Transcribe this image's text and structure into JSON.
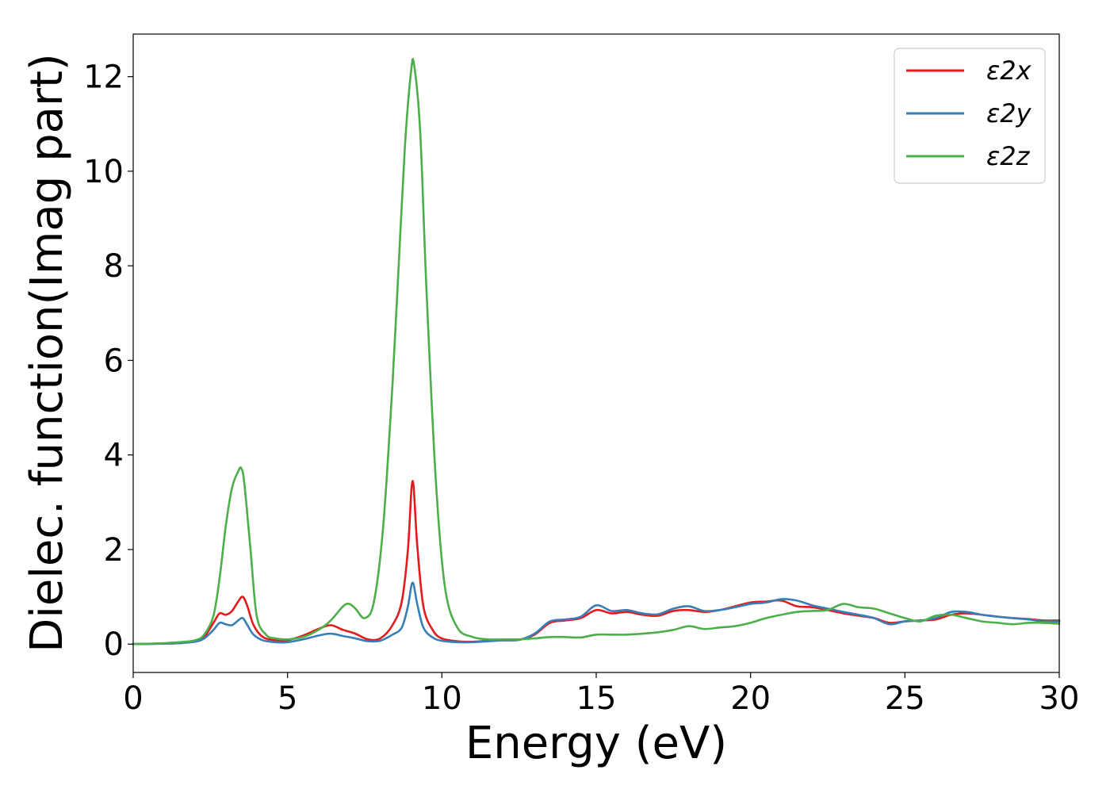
{
  "chart_data": {
    "type": "line",
    "title": "",
    "xlabel": "Energy (eV)",
    "ylabel": "Dielec. function(Imag part)",
    "xlim": [
      0,
      30
    ],
    "ylim": [
      -0.6,
      12.9
    ],
    "xticks": [
      0,
      5,
      10,
      15,
      20,
      25,
      30
    ],
    "yticks": [
      0,
      2,
      4,
      6,
      8,
      10,
      12
    ],
    "grid": false,
    "legend_position": "top-right",
    "colors": {
      "ε2x": "#e41a1c",
      "ε2y": "#377eb8",
      "ε2z": "#4daf4a"
    },
    "series": [
      {
        "name": "ε2x",
        "x": [
          0,
          1,
          1.5,
          2,
          2.3,
          2.6,
          2.8,
          3.0,
          3.2,
          3.4,
          3.55,
          3.7,
          3.9,
          4.2,
          4.6,
          5.0,
          5.5,
          6.0,
          6.4,
          6.8,
          7.2,
          7.6,
          8.0,
          8.4,
          8.7,
          8.9,
          9.05,
          9.2,
          9.4,
          9.7,
          10.0,
          10.5,
          11.0,
          11.5,
          12.0,
          12.5,
          13.0,
          13.5,
          14.0,
          14.5,
          15.0,
          15.5,
          16.0,
          16.5,
          17.0,
          17.5,
          18.0,
          18.5,
          19.0,
          19.5,
          20.0,
          20.5,
          21.0,
          21.5,
          22.0,
          22.5,
          23.0,
          23.5,
          24.0,
          24.5,
          25.0,
          25.5,
          26.0,
          26.5,
          27.0,
          27.5,
          28.0,
          28.5,
          29.0,
          29.5,
          30.0
        ],
        "values": [
          0,
          0.01,
          0.02,
          0.06,
          0.15,
          0.45,
          0.65,
          0.62,
          0.7,
          0.9,
          1.0,
          0.8,
          0.4,
          0.15,
          0.08,
          0.08,
          0.18,
          0.32,
          0.4,
          0.3,
          0.22,
          0.1,
          0.12,
          0.4,
          0.9,
          2.0,
          3.45,
          2.1,
          0.8,
          0.3,
          0.12,
          0.06,
          0.05,
          0.07,
          0.08,
          0.09,
          0.2,
          0.45,
          0.5,
          0.55,
          0.72,
          0.65,
          0.68,
          0.62,
          0.6,
          0.7,
          0.72,
          0.68,
          0.72,
          0.8,
          0.88,
          0.9,
          0.92,
          0.8,
          0.78,
          0.72,
          0.65,
          0.6,
          0.55,
          0.45,
          0.48,
          0.5,
          0.52,
          0.62,
          0.65,
          0.62,
          0.58,
          0.55,
          0.53,
          0.5,
          0.5
        ]
      },
      {
        "name": "ε2y",
        "x": [
          0,
          1,
          1.5,
          2,
          2.3,
          2.6,
          2.8,
          3.0,
          3.2,
          3.4,
          3.55,
          3.7,
          3.9,
          4.2,
          4.6,
          5.0,
          5.5,
          6.0,
          6.4,
          6.8,
          7.2,
          7.6,
          8.0,
          8.4,
          8.7,
          8.9,
          9.05,
          9.2,
          9.4,
          9.7,
          10.0,
          10.5,
          11.0,
          11.5,
          12.0,
          12.5,
          13.0,
          13.5,
          14.0,
          14.5,
          15.0,
          15.5,
          16.0,
          16.5,
          17.0,
          17.5,
          18.0,
          18.5,
          19.0,
          19.5,
          20.0,
          20.5,
          21.0,
          21.5,
          22.0,
          22.5,
          23.0,
          23.5,
          24.0,
          24.5,
          25.0,
          25.5,
          26.0,
          26.5,
          27.0,
          27.5,
          28.0,
          28.5,
          29.0,
          29.5,
          30.0
        ],
        "values": [
          0,
          0.01,
          0.02,
          0.05,
          0.12,
          0.3,
          0.45,
          0.42,
          0.4,
          0.5,
          0.55,
          0.4,
          0.2,
          0.08,
          0.04,
          0.04,
          0.1,
          0.18,
          0.22,
          0.17,
          0.12,
          0.06,
          0.07,
          0.2,
          0.35,
          0.8,
          1.3,
          0.85,
          0.35,
          0.14,
          0.07,
          0.04,
          0.04,
          0.06,
          0.08,
          0.09,
          0.22,
          0.48,
          0.52,
          0.58,
          0.82,
          0.7,
          0.72,
          0.65,
          0.63,
          0.75,
          0.8,
          0.7,
          0.72,
          0.78,
          0.85,
          0.88,
          0.95,
          0.92,
          0.82,
          0.75,
          0.68,
          0.62,
          0.55,
          0.42,
          0.48,
          0.5,
          0.55,
          0.68,
          0.68,
          0.62,
          0.58,
          0.55,
          0.52,
          0.48,
          0.48
        ]
      },
      {
        "name": "ε2z",
        "x": [
          0,
          1,
          1.5,
          2,
          2.3,
          2.6,
          2.8,
          3.0,
          3.2,
          3.4,
          3.5,
          3.6,
          3.8,
          4.0,
          4.3,
          4.6,
          5.0,
          5.5,
          6.0,
          6.4,
          6.8,
          7.0,
          7.2,
          7.5,
          7.8,
          8.1,
          8.4,
          8.6,
          8.8,
          9.0,
          9.1,
          9.3,
          9.5,
          9.8,
          10.1,
          10.5,
          11.0,
          11.5,
          12.0,
          12.5,
          13.0,
          13.5,
          14.0,
          14.5,
          15.0,
          15.5,
          16.0,
          16.5,
          17.0,
          17.5,
          18.0,
          18.5,
          19.0,
          19.5,
          20.0,
          20.5,
          21.0,
          21.5,
          22.0,
          22.5,
          23.0,
          23.5,
          24.0,
          24.5,
          25.0,
          25.5,
          26.0,
          26.5,
          27.0,
          27.5,
          28.0,
          28.5,
          29.0,
          29.5,
          30.0
        ],
        "values": [
          0,
          0.02,
          0.04,
          0.08,
          0.2,
          0.6,
          1.4,
          2.5,
          3.3,
          3.65,
          3.72,
          3.4,
          2.0,
          0.6,
          0.2,
          0.12,
          0.1,
          0.15,
          0.3,
          0.5,
          0.8,
          0.85,
          0.75,
          0.55,
          0.9,
          2.5,
          5.5,
          8.0,
          10.5,
          12.1,
          12.25,
          10.8,
          7.5,
          3.5,
          1.2,
          0.35,
          0.15,
          0.1,
          0.1,
          0.1,
          0.12,
          0.15,
          0.15,
          0.14,
          0.2,
          0.2,
          0.2,
          0.22,
          0.25,
          0.3,
          0.38,
          0.32,
          0.35,
          0.38,
          0.45,
          0.55,
          0.62,
          0.68,
          0.7,
          0.72,
          0.85,
          0.78,
          0.75,
          0.65,
          0.55,
          0.48,
          0.6,
          0.62,
          0.55,
          0.48,
          0.45,
          0.42,
          0.45,
          0.45,
          0.43
        ]
      }
    ]
  }
}
